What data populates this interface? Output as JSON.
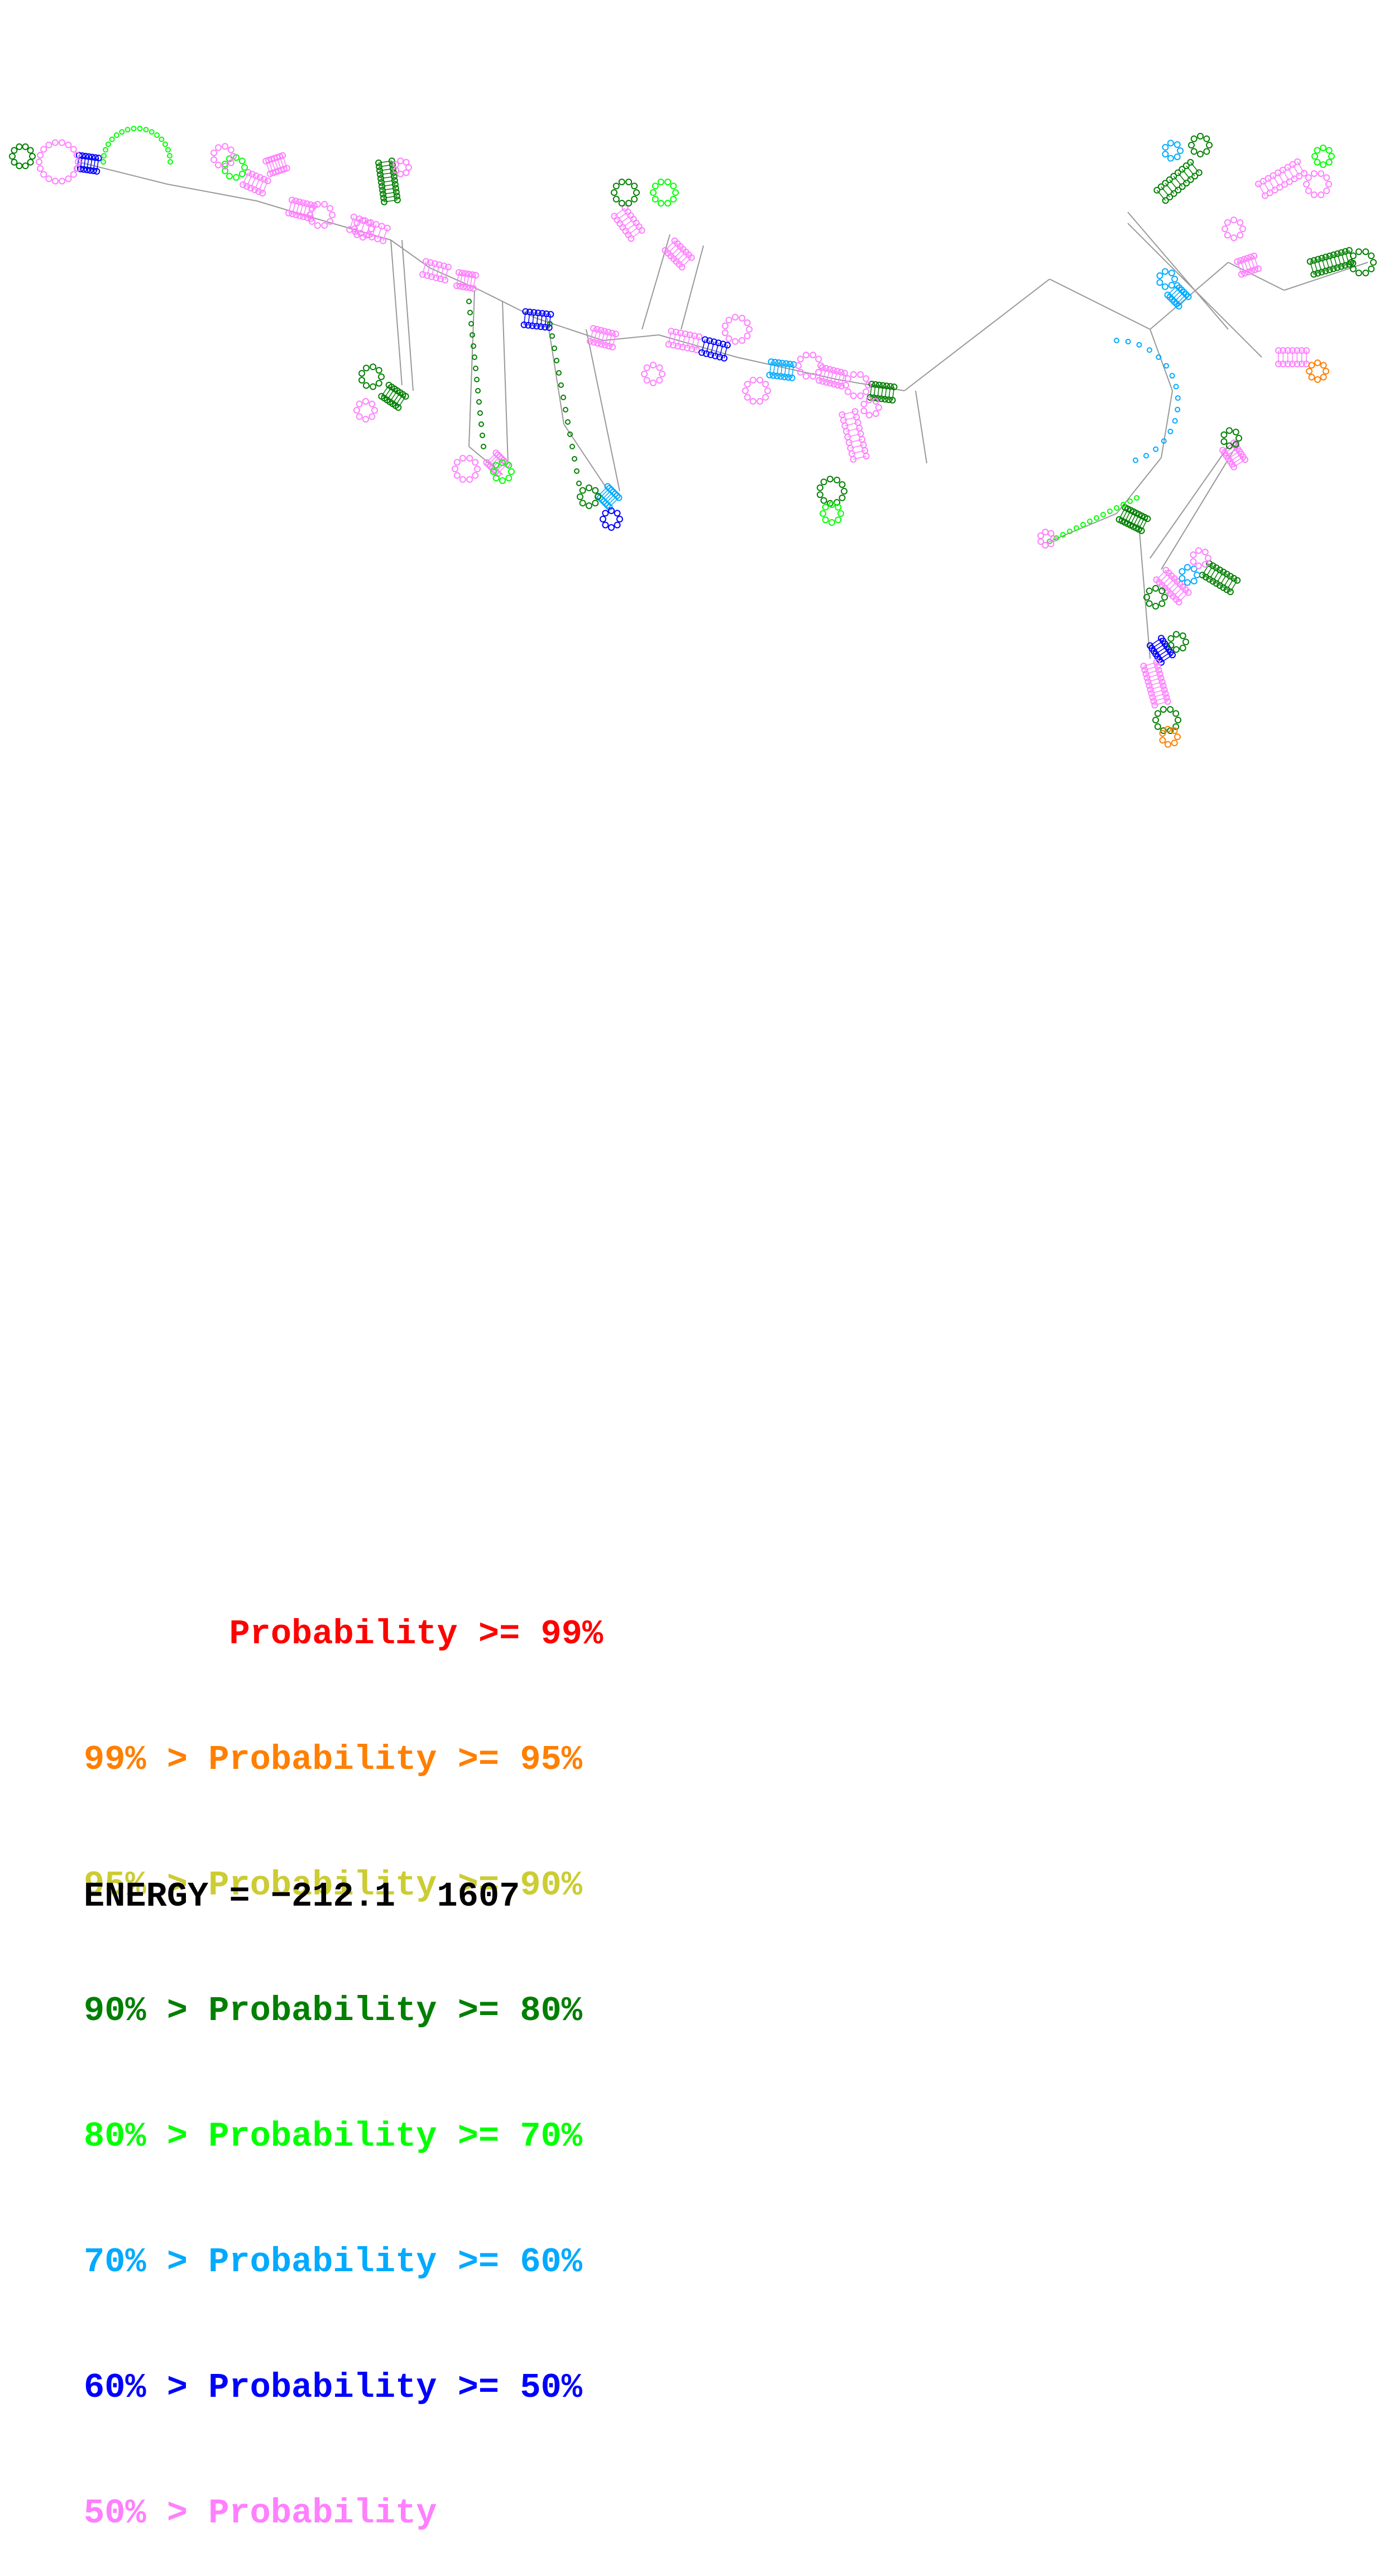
{
  "legend": [
    {
      "text": "       Probability >= 99%",
      "color": "#ff0000"
    },
    {
      "text": "99% > Probability >= 95%",
      "color": "#ff7f00"
    },
    {
      "text": "95% > Probability >= 90%",
      "color": "#cccc33"
    },
    {
      "text": "90% > Probability >= 80%",
      "color": "#007f00"
    },
    {
      "text": "80% > Probability >= 70%",
      "color": "#00ff00"
    },
    {
      "text": "70% > Probability >= 60%",
      "color": "#00aaff"
    },
    {
      "text": "60% > Probability >= 50%",
      "color": "#0000ff"
    },
    {
      "text": "50% > Probability",
      "color": "#ff7fff"
    }
  ],
  "energy": {
    "label": "ENERGY = ",
    "value": "−212.1",
    "length": "1607"
  },
  "pair_colors": {
    "p99": "#ff0000",
    "p95": "#ff7f00",
    "p90": "#cccc33",
    "p80": "#007f00",
    "p70": "#00ff00",
    "p60": "#00aaff",
    "p50": "#0000ff",
    "low": "#ff7fff"
  },
  "backbone_color": "#999999"
}
